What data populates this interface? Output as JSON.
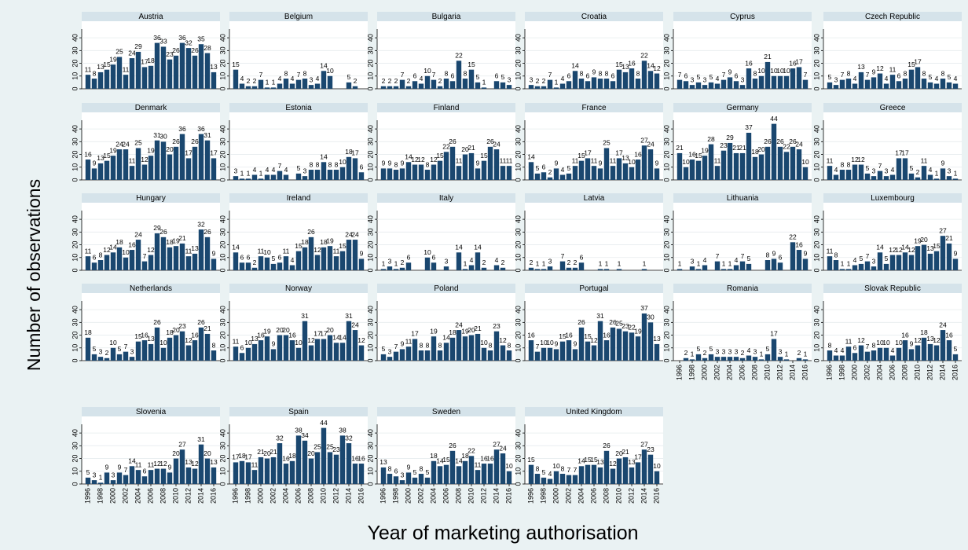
{
  "chart_data": {
    "type": "bar",
    "xlabel": "Year of marketing authorisation",
    "ylabel": "Number of observations",
    "color": "#1a476f",
    "ylim": [
      0,
      45
    ],
    "yticks": [
      0,
      10,
      20,
      30,
      40
    ],
    "grid": true,
    "categories": [
      "1996",
      null,
      "1998",
      null,
      "2000",
      null,
      "2002",
      null,
      "2004",
      null,
      "2006",
      null,
      "2008",
      null,
      "2010",
      null,
      "2012",
      null,
      "2014",
      null,
      "2016"
    ],
    "panels": [
      {
        "title": "Austria",
        "values": [
          11,
          8,
          13,
          15,
          19,
          25,
          11,
          24,
          29,
          17,
          18,
          36,
          33,
          23,
          26,
          36,
          32,
          26,
          35,
          28,
          13
        ]
      },
      {
        "title": "Belgium",
        "values": [
          15,
          4,
          2,
          2,
          7,
          1,
          1,
          4,
          8,
          4,
          7,
          8,
          3,
          4,
          14,
          10,
          null,
          null,
          5,
          2,
          null
        ]
      },
      {
        "title": "Bulgaria",
        "values": [
          2,
          2,
          2,
          7,
          2,
          6,
          4,
          10,
          7,
          2,
          8,
          6,
          22,
          8,
          15,
          5,
          1,
          null,
          6,
          5,
          3
        ]
      },
      {
        "title": "Croatia",
        "values": [
          3,
          2,
          2,
          7,
          1,
          4,
          6,
          14,
          8,
          6,
          9,
          8,
          8,
          6,
          15,
          13,
          16,
          8,
          22,
          14,
          12
        ]
      },
      {
        "title": "Cyprus",
        "values": [
          7,
          6,
          3,
          5,
          3,
          5,
          4,
          7,
          9,
          6,
          3,
          16,
          8,
          10,
          21,
          10,
          10,
          10,
          16,
          17,
          7
        ]
      },
      {
        "title": "Czech Republic",
        "values": [
          5,
          3,
          7,
          8,
          4,
          13,
          7,
          9,
          12,
          4,
          11,
          6,
          8,
          15,
          17,
          8,
          5,
          4,
          8,
          5,
          4
        ]
      },
      {
        "title": "Denmark",
        "values": [
          16,
          9,
          13,
          15,
          19,
          24,
          24,
          11,
          25,
          12,
          19,
          31,
          30,
          20,
          26,
          36,
          17,
          26,
          36,
          31,
          17
        ]
      },
      {
        "title": "Estonia",
        "values": [
          3,
          1,
          1,
          4,
          1,
          4,
          4,
          7,
          4,
          null,
          5,
          3,
          8,
          8,
          14,
          8,
          8,
          10,
          18,
          17,
          6
        ]
      },
      {
        "title": "Finland",
        "values": [
          9,
          9,
          8,
          9,
          14,
          12,
          12,
          8,
          12,
          15,
          22,
          26,
          11,
          20,
          21,
          9,
          15,
          26,
          24,
          11,
          11
        ]
      },
      {
        "title": "France",
        "values": [
          14,
          5,
          6,
          2,
          9,
          4,
          5,
          11,
          15,
          17,
          11,
          9,
          25,
          11,
          17,
          13,
          10,
          16,
          27,
          24,
          9
        ]
      },
      {
        "title": "Germany",
        "values": [
          21,
          10,
          16,
          15,
          19,
          28,
          11,
          23,
          29,
          21,
          21,
          37,
          18,
          20,
          26,
          44,
          26,
          22,
          26,
          24,
          10
        ]
      },
      {
        "title": "Greece",
        "values": [
          11,
          4,
          8,
          8,
          12,
          12,
          5,
          3,
          7,
          3,
          4,
          17,
          17,
          5,
          2,
          11,
          4,
          1,
          9,
          3,
          1
        ]
      },
      {
        "title": "Hungary",
        "values": [
          11,
          6,
          8,
          12,
          14,
          18,
          10,
          16,
          24,
          7,
          12,
          29,
          26,
          18,
          19,
          21,
          11,
          13,
          32,
          26,
          9
        ]
      },
      {
        "title": "Ireland",
        "values": [
          14,
          6,
          6,
          2,
          11,
          10,
          5,
          6,
          11,
          4,
          15,
          18,
          26,
          12,
          18,
          19,
          11,
          15,
          24,
          24,
          9
        ]
      },
      {
        "title": "Italy",
        "values": [
          1,
          3,
          1,
          2,
          6,
          null,
          null,
          10,
          6,
          null,
          3,
          null,
          14,
          1,
          4,
          14,
          2,
          null,
          4,
          2,
          null
        ]
      },
      {
        "title": "Latvia",
        "values": [
          2,
          1,
          1,
          3,
          null,
          7,
          2,
          2,
          6,
          null,
          null,
          1,
          1,
          null,
          1,
          null,
          null,
          null,
          1,
          null,
          null
        ]
      },
      {
        "title": "Lithuania",
        "values": [
          1,
          null,
          3,
          1,
          4,
          null,
          7,
          1,
          1,
          4,
          7,
          5,
          null,
          null,
          8,
          9,
          6,
          null,
          22,
          16,
          9
        ]
      },
      {
        "title": "Luxembourg",
        "values": [
          11,
          8,
          1,
          1,
          4,
          5,
          7,
          3,
          14,
          5,
          12,
          12,
          14,
          12,
          19,
          20,
          13,
          15,
          27,
          21,
          9
        ]
      },
      {
        "title": "Netherlands",
        "values": [
          18,
          5,
          3,
          2,
          10,
          5,
          7,
          3,
          15,
          16,
          13,
          26,
          10,
          18,
          20,
          23,
          12,
          16,
          26,
          21,
          8
        ]
      },
      {
        "title": "Norway",
        "values": [
          11,
          6,
          10,
          13,
          16,
          19,
          9,
          20,
          20,
          16,
          10,
          31,
          12,
          17,
          17,
          20,
          14,
          14,
          31,
          24,
          12
        ]
      },
      {
        "title": "Poland",
        "values": [
          5,
          3,
          7,
          9,
          11,
          17,
          8,
          8,
          19,
          8,
          14,
          18,
          24,
          19,
          20,
          21,
          10,
          8,
          23,
          12,
          8
        ]
      },
      {
        "title": "Portugal",
        "values": [
          16,
          7,
          10,
          10,
          9,
          15,
          16,
          9,
          26,
          15,
          12,
          31,
          16,
          26,
          25,
          23,
          22,
          19,
          37,
          30,
          13
        ]
      },
      {
        "title": "Romania",
        "values": [
          null,
          2,
          1,
          5,
          2,
          5,
          3,
          3,
          3,
          3,
          2,
          4,
          3,
          1,
          5,
          17,
          3,
          1,
          null,
          2,
          1
        ]
      },
      {
        "title": "Slovak Republic",
        "values": [
          8,
          4,
          4,
          11,
          6,
          12,
          7,
          8,
          10,
          10,
          4,
          10,
          16,
          9,
          12,
          18,
          13,
          12,
          24,
          16,
          5
        ]
      },
      {
        "title": "Slovenia",
        "values": [
          5,
          3,
          1,
          9,
          3,
          9,
          7,
          14,
          11,
          6,
          11,
          12,
          12,
          9,
          20,
          27,
          13,
          12,
          31,
          20,
          13
        ]
      },
      {
        "title": "Spain",
        "values": [
          17,
          18,
          17,
          11,
          21,
          20,
          21,
          32,
          16,
          18,
          38,
          34,
          20,
          25,
          44,
          25,
          23,
          38,
          32,
          16,
          16
        ]
      },
      {
        "title": "Sweden",
        "values": [
          13,
          8,
          6,
          3,
          9,
          5,
          8,
          5,
          18,
          14,
          15,
          26,
          14,
          18,
          22,
          11,
          16,
          16,
          27,
          24,
          10
        ]
      },
      {
        "title": "United Kingdom",
        "values": [
          15,
          8,
          5,
          4,
          10,
          8,
          7,
          7,
          14,
          15,
          15,
          13,
          26,
          12,
          20,
          21,
          13,
          17,
          27,
          23,
          10
        ]
      }
    ]
  }
}
